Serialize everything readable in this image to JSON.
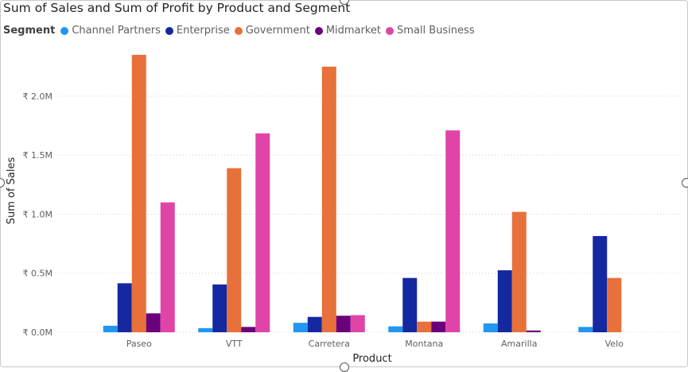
{
  "colors": {
    "Channel Partners": "#2196f3",
    "Enterprise": "#1428a0",
    "Government": "#e8703a",
    "Midmarket": "#6b007b",
    "Small Business": "#e044a7",
    "gridline": "#d0d0d0"
  },
  "chart_data": {
    "type": "bar",
    "title": "Sum of Sales and Sum of Profit by Product and Segment",
    "legend_title": "Segment",
    "legend_position": "top-left",
    "xlabel": "Product",
    "ylabel": "Sum of Sales",
    "ylim": [
      0,
      2350000
    ],
    "yticks": [
      {
        "value": 0,
        "label": "₹ 0.0M"
      },
      {
        "value": 500000,
        "label": "₹ 0.5M"
      },
      {
        "value": 1000000,
        "label": "₹ 1.0M"
      },
      {
        "value": 1500000,
        "label": "₹ 1.5M"
      },
      {
        "value": 2000000,
        "label": "₹ 2.0M"
      }
    ],
    "grid": true,
    "categories": [
      "Paseo",
      "VTT",
      "Carretera",
      "Montana",
      "Amarilla",
      "Velo"
    ],
    "series": [
      {
        "name": "Channel Partners",
        "values": [
          55000,
          35000,
          80000,
          50000,
          75000,
          45000
        ]
      },
      {
        "name": "Enterprise",
        "values": [
          415000,
          405000,
          130000,
          460000,
          525000,
          815000
        ]
      },
      {
        "name": "Government",
        "values": [
          2350000,
          1390000,
          2250000,
          90000,
          1020000,
          460000
        ]
      },
      {
        "name": "Midmarket",
        "values": [
          160000,
          45000,
          140000,
          90000,
          15000,
          null
        ]
      },
      {
        "name": "Small Business",
        "values": [
          1100000,
          1685000,
          145000,
          1710000,
          null,
          null
        ]
      }
    ]
  }
}
